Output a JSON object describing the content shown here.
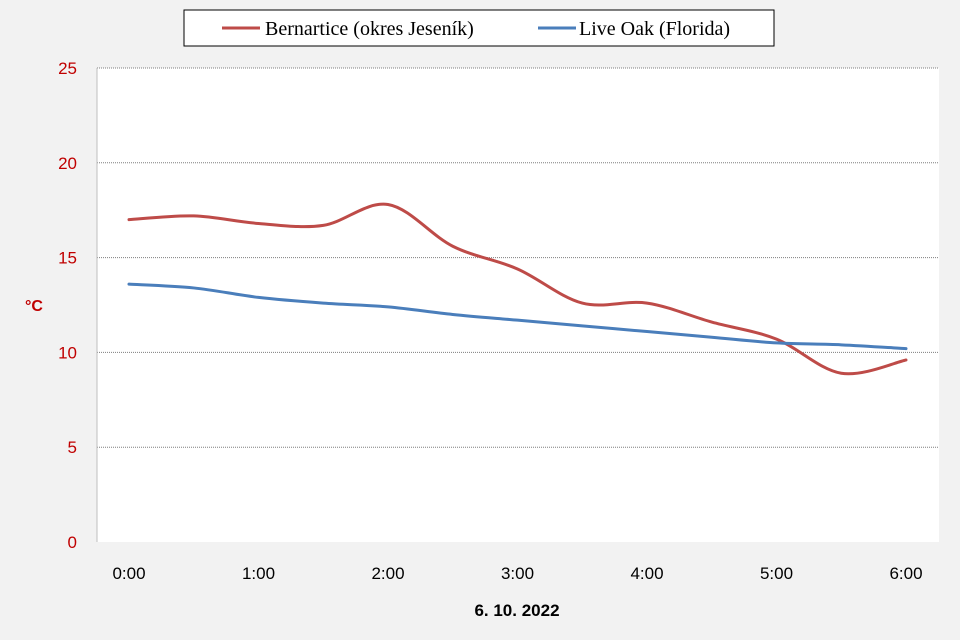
{
  "chart_data": {
    "type": "line",
    "xlabel": "6. 10. 2022",
    "ylabel": "°C",
    "x": [
      0,
      0.5,
      1,
      1.5,
      2,
      2.5,
      3,
      3.5,
      4,
      4.5,
      5,
      5.5,
      6
    ],
    "x_ticks": [
      0,
      1,
      2,
      3,
      4,
      5,
      6
    ],
    "x_tick_labels": [
      "0:00",
      "1:00",
      "2:00",
      "3:00",
      "4:00",
      "5:00",
      "6:00"
    ],
    "ylim": [
      0,
      25
    ],
    "y_ticks": [
      0,
      5,
      10,
      15,
      20,
      25
    ],
    "y_tick_labels": [
      "0",
      "5",
      "10",
      "15",
      "20",
      "25"
    ],
    "grid": true,
    "legend_position": "top",
    "series": [
      {
        "name": "Bernartice (okres Jeseník)",
        "color": "#be4b48",
        "values": [
          17.0,
          17.2,
          16.8,
          16.7,
          17.8,
          15.6,
          14.4,
          12.6,
          12.6,
          11.6,
          10.7,
          8.9,
          9.6
        ]
      },
      {
        "name": "Live Oak (Florida)",
        "color": "#4a7ebb",
        "values": [
          13.6,
          13.4,
          12.9,
          12.6,
          12.4,
          12.0,
          11.7,
          11.4,
          11.1,
          10.8,
          10.5,
          10.4,
          10.2
        ]
      }
    ],
    "colors": {
      "axis_text": "#c00000",
      "grid": "#7f7f7f",
      "plot_background": "#ffffff",
      "page_background": "#f2f2f2"
    }
  }
}
